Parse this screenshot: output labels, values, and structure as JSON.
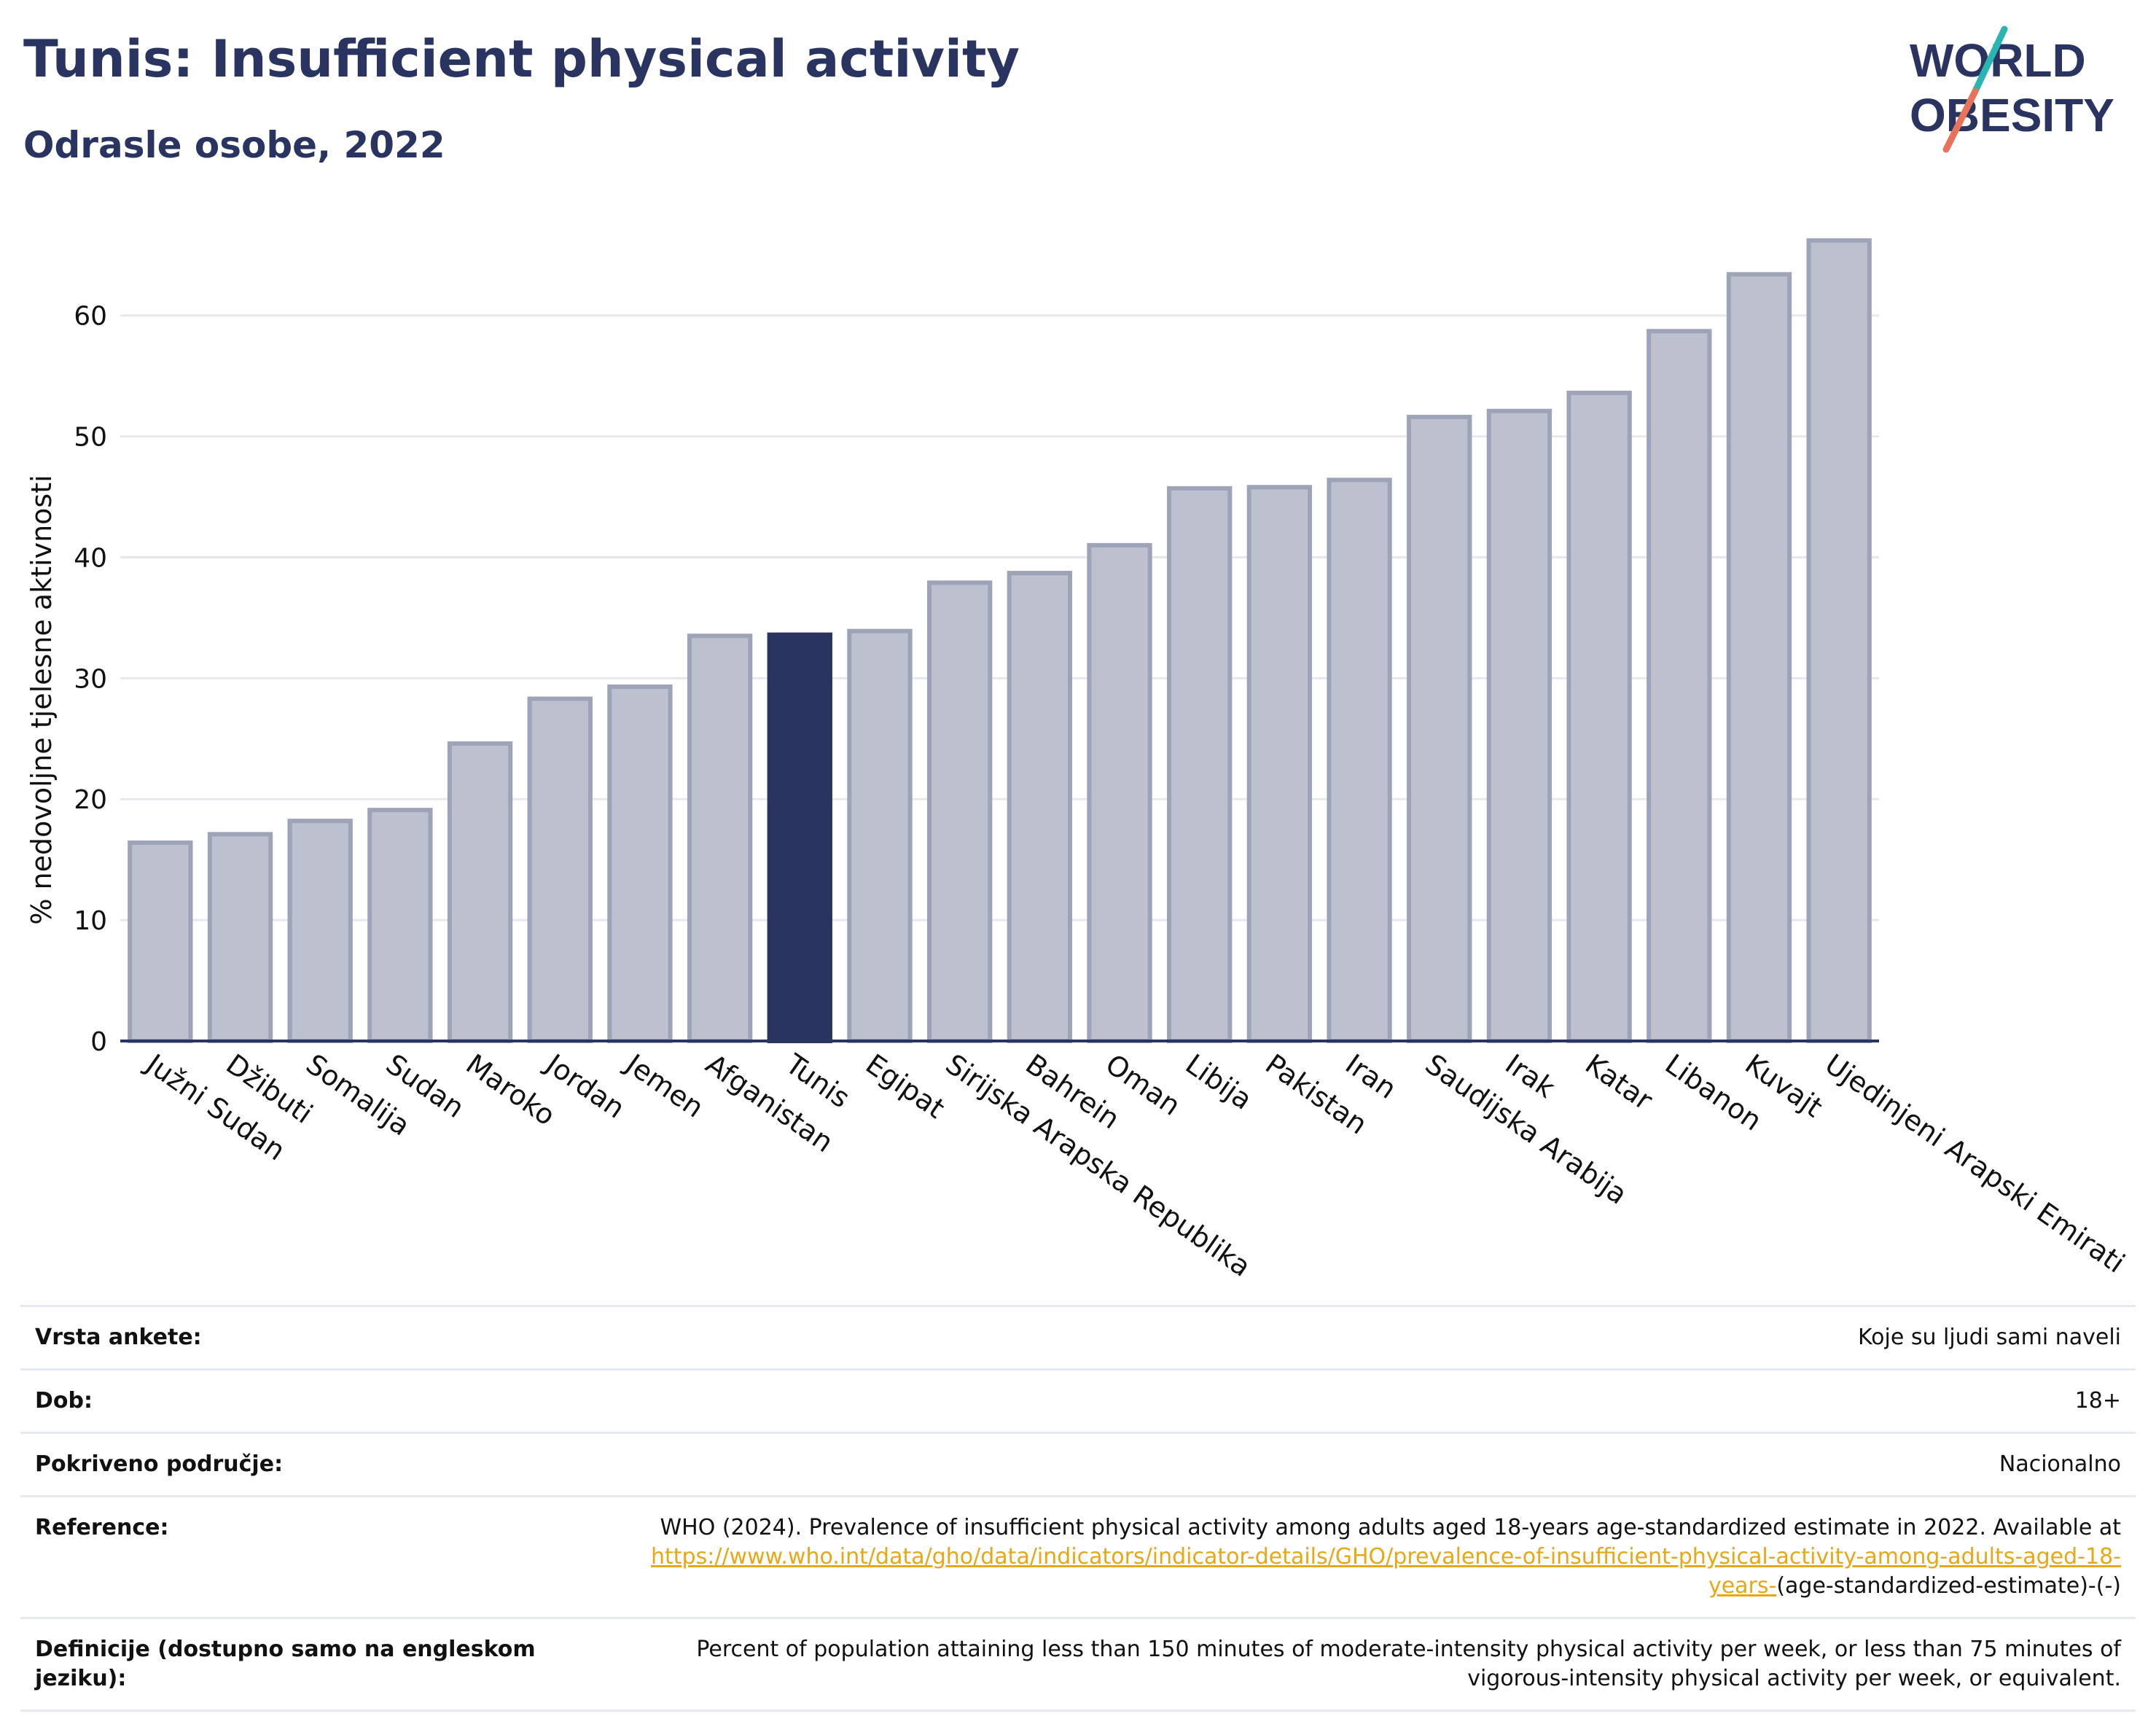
{
  "header": {
    "title": "Tunis: Insufficient physical activity",
    "subtitle": "Odrasle osobe, 2022"
  },
  "logo": {
    "line1": "WORLD",
    "line2": "OBESITY",
    "accent_teal": "#2bb5b0",
    "accent_coral": "#e8735a",
    "text_color": "#2a3461"
  },
  "colors": {
    "bar_default": "#bcc0cf",
    "bar_default_stroke": "#9ea3b8",
    "bar_highlight": "#2a3461",
    "axis": "#2a3461",
    "grid": "#e6e8ee"
  },
  "chart_data": {
    "type": "bar",
    "ylabel": "% nedovoljne tjelesne aktivnosti",
    "xlabel": "",
    "ylim": [
      0,
      68
    ],
    "yticks": [
      0,
      10,
      20,
      30,
      40,
      50,
      60
    ],
    "grid": true,
    "highlight": "Tunis",
    "categories": [
      "Južni Sudan",
      "Džibuti",
      "Somalija",
      "Sudan",
      "Maroko",
      "Jordan",
      "Jemen",
      "Afganistan",
      "Tunis",
      "Egipat",
      "Sirijska Arapska Republika",
      "Bahrein",
      "Oman",
      "Libija",
      "Pakistan",
      "Iran",
      "Saudijska Arabija",
      "Irak",
      "Katar",
      "Libanon",
      "Kuvajt",
      "Ujedinjeni Arapski Emirati"
    ],
    "values": [
      16.4,
      17.1,
      18.2,
      19.1,
      24.6,
      28.3,
      29.3,
      33.5,
      33.6,
      33.9,
      37.9,
      38.7,
      41.0,
      45.7,
      45.8,
      46.4,
      51.6,
      52.1,
      53.6,
      58.7,
      63.4,
      66.2
    ]
  },
  "info": [
    {
      "label": "Vrsta ankete:",
      "value": "Koje su ljudi sami naveli"
    },
    {
      "label": "Dob:",
      "value": "18+"
    },
    {
      "label": "Pokriveno područje:",
      "value": "Nacionalno"
    },
    {
      "label": "Reference:",
      "value": "WHO (2024). Prevalence of insufficient physical activity among adults aged 18-years age-standardized estimate in 2022. Available at",
      "link": "https://www.who.int/data/gho/data/indicators/indicator-details/GHO/prevalence-of-insufficient-physical-activity-among-adults-aged-18-years-",
      "suffix": "(age-standardized-estimate)-(-)"
    },
    {
      "label": "Definicije (dostupno samo na engleskom jeziku):",
      "value": "Percent of population attaining less than 150 minutes of moderate-intensity physical activity per week, or less than 75 minutes of vigorous-intensity physical activity per week, or equivalent."
    }
  ]
}
